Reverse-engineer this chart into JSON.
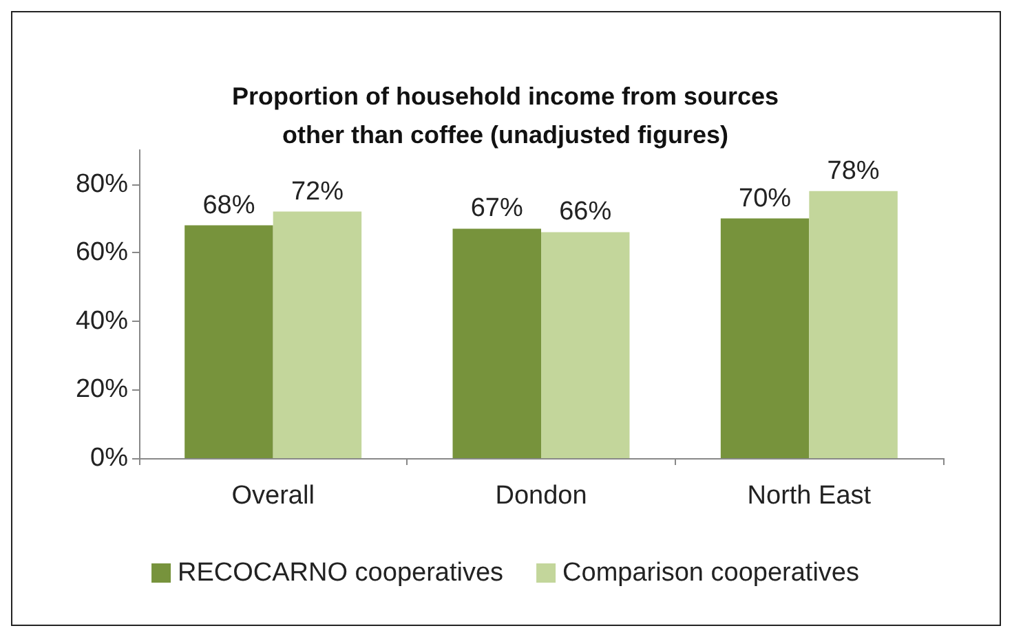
{
  "chart_data": {
    "type": "bar",
    "title": "Proportion of household income from sources\nother than coffee (unadjusted figures)",
    "categories": [
      "Overall",
      "Dondon",
      "North East"
    ],
    "series": [
      {
        "name": "RECOCARNO cooperatives",
        "color": "#77933c",
        "values": [
          68,
          67,
          70
        ],
        "value_labels": [
          "68%",
          "67%",
          "70%"
        ]
      },
      {
        "name": "Comparison cooperatives",
        "color": "#c3d69b",
        "values": [
          72,
          66,
          78
        ],
        "value_labels": [
          "72%",
          "66%",
          "78%"
        ]
      }
    ],
    "ylim": [
      0,
      90
    ],
    "yticks": [
      {
        "value": 0,
        "label": "0%"
      },
      {
        "value": 20,
        "label": "20%"
      },
      {
        "value": 40,
        "label": "40%"
      },
      {
        "value": 60,
        "label": "60%"
      },
      {
        "value": 80,
        "label": "80%"
      }
    ],
    "grid": false,
    "legend": "bottom"
  }
}
